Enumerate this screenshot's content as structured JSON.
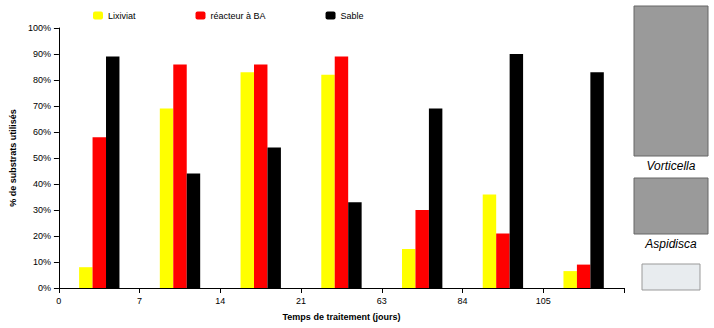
{
  "chart_data": {
    "type": "bar",
    "x_label": "Temps de traitement (jours)",
    "y_label": "% de substrats utilisés",
    "categories": [
      "0",
      "7",
      "14",
      "21",
      "63",
      "84",
      "105"
    ],
    "series": [
      {
        "name": "Lixiviat",
        "color": "#ffff00",
        "values": [
          8,
          69,
          83,
          82,
          15,
          36,
          6.5
        ]
      },
      {
        "name": "réacteur à BA",
        "color": "#ff0000",
        "values": [
          58,
          86,
          86,
          89,
          30,
          21,
          9
        ]
      },
      {
        "name": "Sable",
        "color": "#000000",
        "values": [
          89,
          44,
          54,
          33,
          69,
          90,
          83
        ]
      }
    ],
    "ylim": [
      0,
      100
    ],
    "yticks": [
      {
        "value": 0,
        "label": "0%"
      },
      {
        "value": 10,
        "label": "10%"
      },
      {
        "value": 20,
        "label": "20%"
      },
      {
        "value": 30,
        "label": "30%"
      },
      {
        "value": 40,
        "label": "40%"
      },
      {
        "value": 50,
        "label": "50%"
      },
      {
        "value": 60,
        "label": "60%"
      },
      {
        "value": 70,
        "label": "70%"
      },
      {
        "value": 80,
        "label": "80%"
      },
      {
        "value": 90,
        "label": "90%"
      },
      {
        "value": 100,
        "label": "100%"
      }
    ],
    "grid": false,
    "legend": "top",
    "annotations": [
      "Vorticella",
      "Aspidisca"
    ]
  }
}
